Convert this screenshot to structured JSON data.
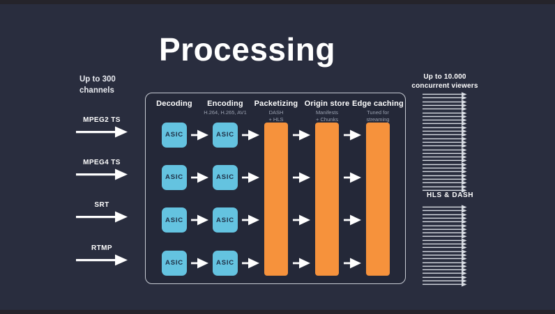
{
  "slide": {
    "title": "Processing",
    "background_color": "#292d3e",
    "letterbox_color": "#25242b"
  },
  "colors": {
    "asic_fill": "#64c3e0",
    "asic_text": "#1e2e44",
    "stage_bar_orange": "#f6923c",
    "box_border": "#c9cdd5",
    "arrow_white": "#ffffff",
    "viewer_arrow_gray": "#d9dde4",
    "subtitle_gray": "#99a0af"
  },
  "inputs": {
    "caption_line1": "Up to 300",
    "caption_line2": "channels",
    "streams": [
      "MPEG2 TS",
      "MPEG4 TS",
      "SRT",
      "RTMP"
    ]
  },
  "pipeline": {
    "rows": 4,
    "asic_label": "ASIC",
    "columns": [
      {
        "title": "Decoding",
        "subtitle": "",
        "type": "asic"
      },
      {
        "title": "Encoding",
        "subtitle": "H.264, H.265, AV1",
        "type": "asic"
      },
      {
        "title": "Packetizing",
        "subtitle": "DASH\n+ HLS",
        "type": "bar"
      },
      {
        "title": "Origin store",
        "subtitle": "Manifests\n+ Chunks",
        "type": "bar"
      },
      {
        "title": "Edge caching",
        "subtitle": "Tuned for\nstreaming",
        "type": "bar"
      }
    ]
  },
  "outputs": {
    "caption_line1": "Up to 10.000",
    "caption_line2": "concurrent viewers",
    "top_arrow_count": 27,
    "label": "HLS & DASH",
    "bottom_arrow_count": 22
  }
}
